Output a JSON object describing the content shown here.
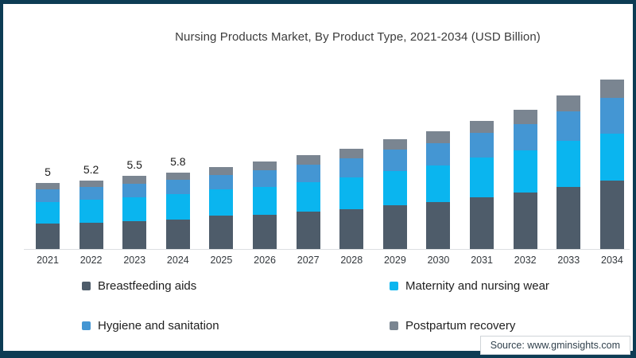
{
  "title": "Nursing Products Market, By Product Type, 2021-2034 (USD Billion)",
  "source_label": "Source: www.gminsights.com",
  "frame": {
    "border_color": "#0d3c54",
    "background": "#ffffff"
  },
  "chart_data": {
    "type": "bar",
    "stacked": true,
    "title": "Nursing Products Market, By Product Type, 2021-2034 (USD Billion)",
    "xlabel": "",
    "ylabel": "USD Billion",
    "ylim": [
      0,
      13.7
    ],
    "grid": false,
    "legend_position": "bottom",
    "categories": [
      "2021",
      "2022",
      "2023",
      "2024",
      "2025",
      "2026",
      "2027",
      "2028",
      "2029",
      "2030",
      "2031",
      "2032",
      "2033",
      "2034"
    ],
    "series": [
      {
        "name": "Breastfeeding aids",
        "color": "#4e5c6a",
        "values": [
          1.9,
          2.0,
          2.1,
          2.25,
          2.5,
          2.6,
          2.8,
          3.0,
          3.3,
          3.55,
          3.9,
          4.25,
          4.7,
          5.2
        ]
      },
      {
        "name": "Maternity and nursing wear",
        "color": "#0ab5ef",
        "values": [
          1.65,
          1.7,
          1.8,
          1.9,
          2.0,
          2.1,
          2.25,
          2.4,
          2.6,
          2.75,
          3.0,
          3.2,
          3.45,
          3.5
        ]
      },
      {
        "name": "Hygiene and sanitation",
        "color": "#4496d3",
        "values": [
          0.95,
          1.0,
          1.05,
          1.1,
          1.1,
          1.25,
          1.35,
          1.45,
          1.6,
          1.7,
          1.85,
          2.0,
          2.25,
          2.7
        ]
      },
      {
        "name": "Postpartum recovery",
        "color": "#7a8591",
        "values": [
          0.5,
          0.5,
          0.55,
          0.55,
          0.6,
          0.65,
          0.7,
          0.75,
          0.8,
          0.9,
          0.95,
          1.05,
          1.2,
          1.4
        ]
      }
    ],
    "totals": [
      5,
      5.2,
      5.5,
      5.8,
      6.2,
      6.6,
      7.1,
      7.6,
      8.3,
      8.9,
      9.7,
      10.5,
      11.6,
      12.8
    ],
    "total_labels": [
      "5",
      "5.2",
      "5.5",
      "5.8",
      "",
      "",
      "",
      "",
      "",
      "",
      "",
      "",
      "",
      ""
    ]
  }
}
